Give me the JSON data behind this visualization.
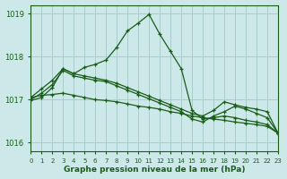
{
  "title": "Graphe pression niveau de la mer (hPa)",
  "bg_color": "#cce8e8",
  "grid_color": "#aacccc",
  "line_color": "#1a5c1a",
  "xlim": [
    0,
    23
  ],
  "ylim": [
    1015.8,
    1019.2
  ],
  "xticks": [
    0,
    1,
    2,
    3,
    4,
    5,
    6,
    7,
    8,
    9,
    10,
    11,
    12,
    13,
    14,
    15,
    16,
    17,
    18,
    19,
    20,
    21,
    22,
    23
  ],
  "yticks": [
    1016,
    1017,
    1018,
    1019
  ],
  "series": [
    {
      "x": [
        0,
        1,
        2,
        3,
        4,
        5,
        6,
        7,
        8,
        9,
        10,
        11,
        12,
        13,
        14,
        15,
        16,
        17,
        18,
        19,
        20,
        21,
        22,
        23
      ],
      "y": [
        1017.05,
        1017.1,
        1017.12,
        1017.15,
        1017.1,
        1017.05,
        1017.0,
        1016.98,
        1016.95,
        1016.9,
        1016.85,
        1016.82,
        1016.78,
        1016.72,
        1016.68,
        1016.62,
        1016.58,
        1016.55,
        1016.52,
        1016.48,
        1016.45,
        1016.42,
        1016.38,
        1016.22
      ]
    },
    {
      "x": [
        0,
        1,
        2,
        3,
        4,
        5,
        6,
        7,
        8,
        9,
        10,
        11,
        12,
        13,
        14,
        15,
        16,
        17,
        18,
        19,
        20,
        21,
        22,
        23
      ],
      "y": [
        1017.05,
        1017.25,
        1017.45,
        1017.72,
        1017.6,
        1017.75,
        1017.82,
        1017.92,
        1018.22,
        1018.6,
        1018.78,
        1018.98,
        1018.52,
        1018.12,
        1017.72,
        1016.75,
        1016.55,
        1016.58,
        1016.62,
        1016.58,
        1016.52,
        1016.48,
        1016.42,
        1016.22
      ]
    },
    {
      "x": [
        0,
        1,
        2,
        3,
        4,
        5,
        6,
        7,
        8,
        9,
        10,
        11,
        12,
        13,
        14,
        15,
        16,
        17,
        18,
        19,
        20,
        21,
        22,
        23
      ],
      "y": [
        1016.98,
        1017.05,
        1017.28,
        1017.72,
        1017.6,
        1017.55,
        1017.5,
        1017.45,
        1017.38,
        1017.28,
        1017.18,
        1017.08,
        1016.98,
        1016.88,
        1016.78,
        1016.68,
        1016.62,
        1016.75,
        1016.95,
        1016.88,
        1016.82,
        1016.78,
        1016.72,
        1016.22
      ]
    },
    {
      "x": [
        0,
        1,
        2,
        3,
        4,
        5,
        6,
        7,
        8,
        9,
        10,
        11,
        12,
        13,
        14,
        15,
        16,
        17,
        18,
        19,
        20,
        21,
        22,
        23
      ],
      "y": [
        1017.0,
        1017.15,
        1017.35,
        1017.68,
        1017.55,
        1017.5,
        1017.45,
        1017.42,
        1017.32,
        1017.22,
        1017.12,
        1017.02,
        1016.92,
        1016.82,
        1016.72,
        1016.55,
        1016.48,
        1016.62,
        1016.72,
        1016.85,
        1016.78,
        1016.68,
        1016.58,
        1016.22
      ]
    }
  ]
}
